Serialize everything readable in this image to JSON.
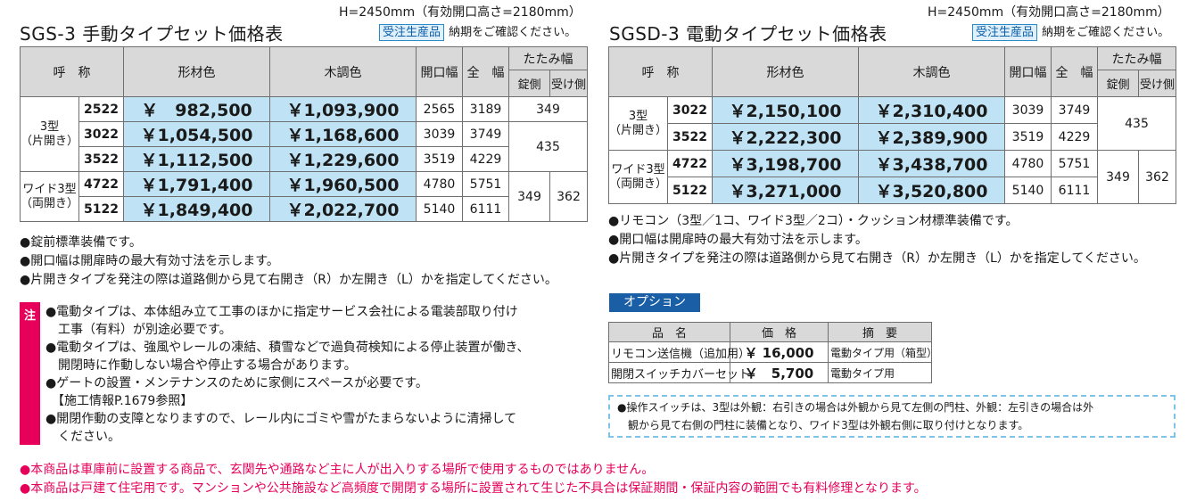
{
  "left": {
    "height_note": "H=2450mm（有効開口高さ=2180mm）",
    "title": "SGS-3 手動タイプセット価格表",
    "badge": "受注生産品",
    "badge_after": "納期をご確認ください。",
    "headers": {
      "name": "呼　称",
      "metal": "形材色",
      "wood": "木調色",
      "opening": "開口幅",
      "total": "全　幅",
      "fold": "たたみ幅",
      "lock_side": "錠側",
      "receive_side": "受け側"
    },
    "groups": [
      {
        "type_line1": "3型",
        "type_line2": "（片開き）",
        "rows": [
          {
            "code": "2522",
            "metal": "￥　982,500",
            "wood": "￥1,093,900",
            "opening": "2565",
            "total": "3189",
            "fold": "349"
          },
          {
            "code": "3022",
            "metal": "￥1,054,500",
            "wood": "￥1,168,600",
            "opening": "3039",
            "total": "3749",
            "fold": "435"
          },
          {
            "code": "3522",
            "metal": "￥1,112,500",
            "wood": "￥1,229,600",
            "opening": "3519",
            "total": "4229"
          }
        ]
      },
      {
        "type_line1": "ワイド3型",
        "type_line2": "（両開き）",
        "rows": [
          {
            "code": "4722",
            "metal": "￥1,791,400",
            "wood": "￥1,960,500",
            "opening": "4780",
            "total": "5751",
            "lock": "349",
            "receive": "362"
          },
          {
            "code": "5122",
            "metal": "￥1,849,400",
            "wood": "￥2,022,700",
            "opening": "5140",
            "total": "6111"
          }
        ]
      }
    ],
    "bullets": [
      "●錠前標準装備です。",
      "●開口幅は開扉時の最大有効寸法を示します。",
      "●片開きタイプを発注の際は道路側から見て右開き（R）か左開き（L）かを指定してください。"
    ],
    "caution_label": "注",
    "caution_lines": [
      "●電動タイプは、本体組み立て工事のほかに指定サービス会社による電装部取り付け",
      "　工事（有料）が別途必要です。",
      "●電動タイプは、強風やレールの凍結、積雪などで過負荷検知による停止装置が働き、",
      "　開閉時に作動しない場合や停止する場合があります。",
      "●ゲートの設置・メンテナンスのために家側にスペースが必要です。",
      "　【施工情報P.1679参照】",
      "●開閉作動の支障となりますので、レール内にゴミや雪がたまらないように清掃して",
      "　ください。"
    ]
  },
  "right": {
    "height_note": "H=2450mm（有効開口高さ=2180mm）",
    "title": "SGSD-3 電動タイプセット価格表",
    "badge": "受注生産品",
    "badge_after": "納期をご確認ください。",
    "headers": {
      "name": "呼　称",
      "metal": "形材色",
      "wood": "木調色",
      "opening": "開口幅",
      "total": "全　幅",
      "fold": "たたみ幅",
      "lock_side": "錠側",
      "receive_side": "受け側"
    },
    "groups": [
      {
        "type_line1": "3型",
        "type_line2": "（片開き）",
        "rows": [
          {
            "code": "3022",
            "metal": "￥2,150,100",
            "wood": "￥2,310,400",
            "opening": "3039",
            "total": "3749",
            "fold": "435"
          },
          {
            "code": "3522",
            "metal": "￥2,222,300",
            "wood": "￥2,389,900",
            "opening": "3519",
            "total": "4229"
          }
        ]
      },
      {
        "type_line1": "ワイド3型",
        "type_line2": "（両開き）",
        "rows": [
          {
            "code": "4722",
            "metal": "￥3,198,700",
            "wood": "￥3,438,700",
            "opening": "4780",
            "total": "5751",
            "lock": "349",
            "receive": "362"
          },
          {
            "code": "5122",
            "metal": "￥3,271,000",
            "wood": "￥3,520,800",
            "opening": "5140",
            "total": "6111"
          }
        ]
      }
    ],
    "bullets": [
      "●リモコン（3型／1コ、ワイド3型／2コ）・クッション材標準装備です。",
      "●開口幅は開扉時の最大有効寸法を示します。",
      "●片開きタイプを発注の際は道路側から見て右開き（R）か左開き（L）かを指定してください。"
    ]
  },
  "option": {
    "tab": "オプション",
    "headers": {
      "name": "品　名",
      "price": "価　格",
      "desc": "摘　要"
    },
    "rows": [
      {
        "name": "リモコン送信機（追加用）",
        "price": "￥ 16,000",
        "desc": "電動タイプ用（箱型）"
      },
      {
        "name": "開閉スイッチカバーセット",
        "price": "￥　5,700",
        "desc": "電動タイプ用"
      }
    ],
    "note_line1": "●操作スイッチは、3型は外観：右引きの場合は外観から見て左側の門柱、外観：左引きの場合は外",
    "note_line2": "　観から見て右側の門柱に装備となり、ワイド3型は外観右側に取り付けとなります。"
  },
  "footer": [
    "●本商品は車庫前に設置する商品で、玄関先や通路など主に人が出入りする場所で使用するものではありません。",
    "●本商品は戸建て住宅用です。マンションや公共施設など高頻度で開閉する場所に設置されて生じた不具合は保証期間・保証内容の範囲でも有料修理となります。"
  ]
}
